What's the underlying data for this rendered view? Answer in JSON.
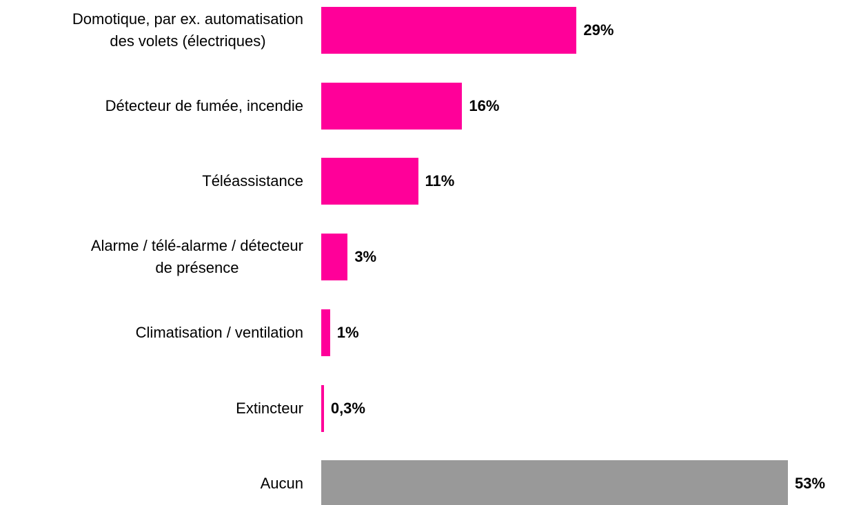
{
  "chart_data": {
    "type": "bar",
    "orientation": "horizontal",
    "categories": [
      "Domotique, par ex. automatisation\ndes volets (électriques)",
      "Détecteur de fumée, incendie",
      "Téléassistance",
      "Alarme / télé-alarme / détecteur\nde présence",
      "Climatisation / ventilation",
      "Extincteur",
      "Aucun"
    ],
    "values": [
      29,
      16,
      11,
      3,
      1,
      0.3,
      53
    ],
    "value_labels": [
      "29%",
      "16%",
      "11%",
      "3%",
      "1%",
      "0,3%",
      "53%"
    ],
    "colors": [
      "#ff0099",
      "#ff0099",
      "#ff0099",
      "#ff0099",
      "#ff0099",
      "#ff0099",
      "#999999"
    ]
  }
}
